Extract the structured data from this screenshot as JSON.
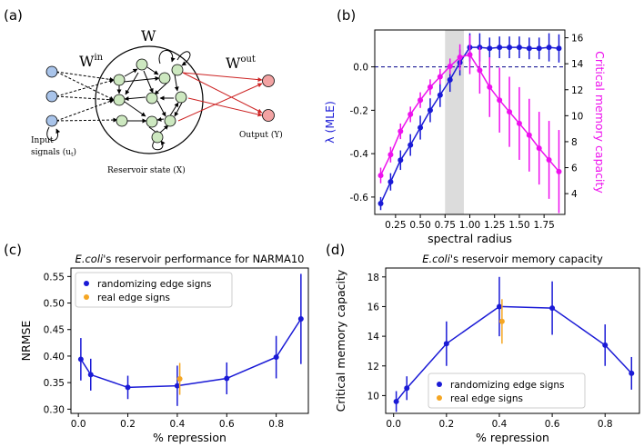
{
  "panel_labels": {
    "a": "(a)",
    "b": "(b)",
    "c": "(c)",
    "d": "(d)"
  },
  "diagram": {
    "w_label": "W",
    "w_in_base": "W",
    "w_in_sup": "in",
    "w_out_base": "W",
    "w_out_sup": "out",
    "input_label_1": "Input",
    "input_label_2": "signals (u",
    "input_label_sub": "t",
    "input_label_end": ")",
    "reservoir_label": "Reservoir state (X)",
    "output_label": "Output (Y)",
    "colors": {
      "input_node": "#a9c4ea",
      "reservoir_node": "#cde8c0",
      "output_node": "#f2a3a3",
      "out_edge": "#cc2222"
    }
  },
  "chart_data": [
    {
      "id": "b",
      "type": "line",
      "title": "",
      "xlabel": "spectral radius",
      "ylabel": "λ (MLE)",
      "ylabel_right": "Critical memory capacity",
      "xlim": [
        0.04,
        1.96
      ],
      "ylim": [
        -0.68,
        0.17
      ],
      "ylim_right": [
        2.4,
        16.6
      ],
      "xticks": [
        "0.25",
        "0.50",
        "0.75",
        "1.00",
        "1.25",
        "1.50",
        "1.75"
      ],
      "xtick_values": [
        0.25,
        0.5,
        0.75,
        1.0,
        1.25,
        1.5,
        1.75
      ],
      "yticks": [
        "-0.6",
        "-0.4",
        "-0.2",
        "0.0"
      ],
      "ytick_values": [
        -0.6,
        -0.4,
        -0.2,
        0.0
      ],
      "yticks_right": [
        "4",
        "6",
        "8",
        "10",
        "12",
        "14",
        "16"
      ],
      "ytick_values_right": [
        4,
        6,
        8,
        10,
        12,
        14,
        16
      ],
      "hline": 0.0,
      "shaded_range": [
        0.75,
        0.94
      ],
      "x": [
        0.1,
        0.2,
        0.3,
        0.4,
        0.5,
        0.6,
        0.7,
        0.8,
        0.9,
        1.0,
        1.1,
        1.2,
        1.3,
        1.4,
        1.5,
        1.6,
        1.7,
        1.8,
        1.9
      ],
      "series": [
        {
          "name": "λ (MLE)",
          "axis": "left",
          "color": "#1a1ad6",
          "values": [
            -0.63,
            -0.53,
            -0.43,
            -0.36,
            -0.28,
            -0.2,
            -0.13,
            -0.06,
            0.02,
            0.09,
            0.09,
            0.085,
            0.09,
            0.09,
            0.09,
            0.085,
            0.085,
            0.09,
            0.085
          ],
          "errors": [
            0.03,
            0.04,
            0.045,
            0.05,
            0.055,
            0.055,
            0.055,
            0.055,
            0.06,
            0.065,
            0.065,
            0.05,
            0.05,
            0.05,
            0.05,
            0.05,
            0.05,
            0.065,
            0.065
          ]
        },
        {
          "name": "Critical memory capacity",
          "axis": "right",
          "color": "#ee11ee",
          "values": [
            5.4,
            7.0,
            8.8,
            10.1,
            11.2,
            12.2,
            13.0,
            13.8,
            14.5,
            14.7,
            13.5,
            12.2,
            11.2,
            10.3,
            9.4,
            8.5,
            7.5,
            6.6,
            5.7
          ],
          "errors": [
            0.6,
            0.6,
            0.6,
            0.6,
            0.6,
            0.6,
            0.6,
            0.6,
            1.0,
            1.5,
            1.8,
            2.3,
            2.5,
            2.7,
            2.8,
            2.8,
            2.8,
            3.0,
            3.2
          ]
        }
      ]
    },
    {
      "id": "c",
      "type": "line",
      "title": "E.coli's reservoir performance for NARMA10",
      "xlabel": "% repression",
      "ylabel": "NRMSE",
      "xlim": [
        -0.03,
        0.93
      ],
      "ylim": [
        0.292,
        0.566
      ],
      "xticks": [
        "0.0",
        "0.2",
        "0.4",
        "0.6",
        "0.8"
      ],
      "xtick_values": [
        0.0,
        0.2,
        0.4,
        0.6,
        0.8
      ],
      "yticks": [
        "0.30",
        "0.35",
        "0.40",
        "0.45",
        "0.50",
        "0.55"
      ],
      "ytick_values": [
        0.3,
        0.35,
        0.4,
        0.45,
        0.5,
        0.55
      ],
      "legend_position": "top-left",
      "series": [
        {
          "name": "randomizing edge signs",
          "color": "#1a1ad6",
          "connected": true,
          "x": [
            0.01,
            0.05,
            0.2,
            0.4,
            0.6,
            0.8,
            0.9
          ],
          "values": [
            0.394,
            0.365,
            0.341,
            0.344,
            0.358,
            0.398,
            0.47
          ],
          "errors": [
            0.04,
            0.03,
            0.022,
            0.038,
            0.03,
            0.04,
            0.085
          ]
        },
        {
          "name": "real edge signs",
          "color": "#f5a623",
          "connected": false,
          "x": [
            0.41
          ],
          "values": [
            0.357
          ],
          "errors": [
            0.03
          ]
        }
      ]
    },
    {
      "id": "d",
      "type": "line",
      "title": "E.coli's reservoir memory capacity",
      "xlabel": "% repression",
      "ylabel": "Critical memory capacity",
      "xlim": [
        -0.03,
        0.93
      ],
      "ylim": [
        8.8,
        18.6
      ],
      "xticks": [
        "0.0",
        "0.2",
        "0.4",
        "0.6",
        "0.8"
      ],
      "xtick_values": [
        0.0,
        0.2,
        0.4,
        0.6,
        0.8
      ],
      "yticks": [
        "10",
        "12",
        "14",
        "16",
        "18"
      ],
      "ytick_values": [
        10,
        12,
        14,
        16,
        18
      ],
      "legend_position": "bottom-right",
      "series": [
        {
          "name": "randomizing edge signs",
          "color": "#1a1ad6",
          "connected": true,
          "x": [
            0.01,
            0.05,
            0.2,
            0.4,
            0.6,
            0.8,
            0.9
          ],
          "values": [
            9.6,
            10.5,
            13.5,
            16.0,
            15.9,
            13.4,
            11.5
          ],
          "errors": [
            0.7,
            0.8,
            1.5,
            2.0,
            1.8,
            1.4,
            1.1
          ]
        },
        {
          "name": "real edge signs",
          "color": "#f5a623",
          "connected": false,
          "x": [
            0.41
          ],
          "values": [
            15.0
          ],
          "errors": [
            1.5
          ]
        }
      ]
    }
  ]
}
